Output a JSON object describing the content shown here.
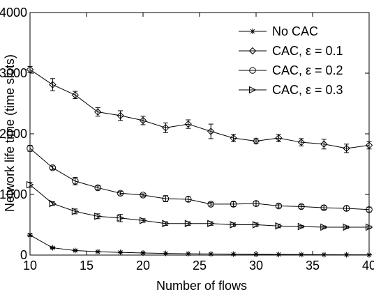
{
  "chart_data": {
    "type": "line",
    "title": "",
    "xlabel": "Number of flows",
    "ylabel": "Network life time (time slots)",
    "xlim": [
      10,
      40
    ],
    "ylim": [
      0,
      4000
    ],
    "xticks": [
      10,
      15,
      20,
      25,
      30,
      35,
      40
    ],
    "yticks": [
      0,
      1000,
      2000,
      3000,
      4000
    ],
    "grid": false,
    "legend_position": "top-right",
    "x": [
      10,
      12,
      14,
      16,
      18,
      20,
      22,
      24,
      26,
      28,
      30,
      32,
      34,
      36,
      38,
      40
    ],
    "series": [
      {
        "name": "No CAC",
        "marker": "star",
        "values": [
          330,
          120,
          75,
          55,
          45,
          35,
          28,
          22,
          18,
          15,
          12,
          10,
          8,
          6,
          5,
          4
        ],
        "errors": [
          20,
          12,
          8,
          6,
          5,
          4,
          3,
          3,
          2,
          2,
          2,
          2,
          1,
          1,
          1,
          1
        ]
      },
      {
        "name": "CAC, ε = 0.1",
        "marker": "diamond",
        "values": [
          3060,
          2810,
          2640,
          2360,
          2300,
          2220,
          2100,
          2160,
          2040,
          1930,
          1880,
          1930,
          1860,
          1830,
          1760,
          1810
        ],
        "errors": [
          50,
          100,
          60,
          70,
          80,
          70,
          80,
          70,
          120,
          60,
          40,
          60,
          60,
          80,
          70,
          60
        ]
      },
      {
        "name": "CAC, ε = 0.2",
        "marker": "circle",
        "values": [
          1760,
          1440,
          1220,
          1110,
          1020,
          990,
          930,
          920,
          840,
          840,
          850,
          810,
          800,
          780,
          770,
          750
        ],
        "errors": [
          50,
          30,
          60,
          30,
          30,
          20,
          50,
          40,
          30,
          40,
          40,
          30,
          30,
          30,
          40,
          40
        ]
      },
      {
        "name": "CAC, ε = 0.3",
        "marker": "triangle-right",
        "values": [
          1160,
          850,
          720,
          640,
          610,
          570,
          520,
          520,
          520,
          500,
          500,
          480,
          470,
          460,
          460,
          460
        ],
        "errors": [
          40,
          30,
          40,
          40,
          60,
          30,
          30,
          30,
          30,
          30,
          30,
          30,
          20,
          20,
          20,
          20
        ]
      }
    ]
  }
}
